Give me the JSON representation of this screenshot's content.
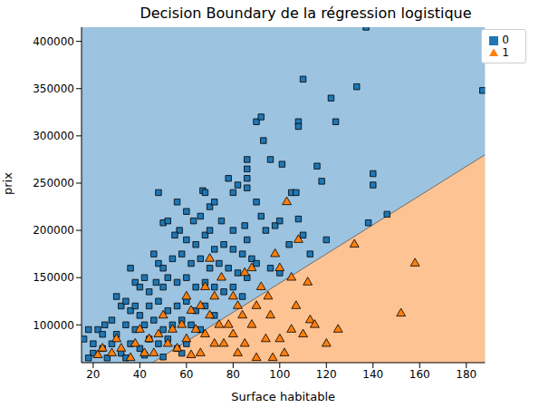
{
  "chart_data": {
    "type": "scatter",
    "title": "Decision Boundary de la régression logistique",
    "x_label": "Surface habitable",
    "y_label": "prix",
    "xlim": [
      15,
      188
    ],
    "ylim": [
      60000,
      415000
    ],
    "xticks": [
      20,
      40,
      60,
      80,
      100,
      120,
      140,
      160,
      180
    ],
    "yticks": [
      100000,
      150000,
      200000,
      250000,
      300000,
      350000,
      400000
    ],
    "grid": false,
    "legend": "upper right",
    "background_color": "#9cc3e0",
    "boundary": {
      "x": [
        15,
        188
      ],
      "y": [
        13000,
        280000
      ],
      "color": "#fec393"
    },
    "series": [
      {
        "name": "0",
        "color": "#1f77b4",
        "marker": "square",
        "x": [
          137,
          187,
          110,
          133,
          122,
          124,
          108,
          108,
          90,
          92,
          93,
          96,
          101,
          86,
          86,
          86,
          86,
          78,
          82,
          80,
          140,
          140,
          116,
          118,
          105,
          107,
          108,
          120,
          110,
          113,
          138,
          146,
          48,
          67,
          68,
          56,
          60,
          63,
          66,
          70,
          72,
          75,
          80,
          85,
          90,
          92,
          94,
          98,
          100,
          104,
          50,
          52,
          57,
          55,
          60,
          64,
          68,
          70,
          72,
          76,
          80,
          84,
          86,
          88,
          46,
          48,
          50,
          54,
          58,
          62,
          66,
          70,
          74,
          78,
          82,
          86,
          90,
          96,
          100,
          36,
          38,
          40,
          42,
          44,
          47,
          50,
          52,
          56,
          60,
          64,
          68,
          72,
          76,
          80,
          84,
          30,
          32,
          34,
          36,
          38,
          40,
          44,
          48,
          52,
          56,
          60,
          64,
          68,
          72,
          25,
          22,
          18,
          16,
          20,
          24,
          28,
          30,
          34,
          38,
          42,
          46,
          50,
          54,
          58,
          62,
          66,
          20,
          24,
          28,
          32,
          36,
          40,
          44,
          48,
          52,
          56,
          60,
          18,
          26,
          34,
          42,
          50,
          58
        ],
        "values": [
          415000,
          348000,
          360000,
          352000,
          340000,
          315000,
          315000,
          310000,
          315000,
          320000,
          295000,
          275000,
          270000,
          275000,
          265000,
          255000,
          245000,
          255000,
          248000,
          240000,
          260000,
          248000,
          268000,
          252000,
          240000,
          240000,
          212000,
          190000,
          195000,
          175000,
          208000,
          217000,
          240000,
          242000,
          240000,
          230000,
          220000,
          210000,
          215000,
          225000,
          230000,
          210000,
          200000,
          205000,
          230000,
          215000,
          200000,
          205000,
          210000,
          185000,
          208000,
          210000,
          200000,
          195000,
          190000,
          185000,
          195000,
          200000,
          180000,
          185000,
          180000,
          175000,
          190000,
          170000,
          175000,
          165000,
          160000,
          170000,
          175000,
          165000,
          170000,
          160000,
          165000,
          160000,
          155000,
          150000,
          165000,
          160000,
          155000,
          160000,
          145000,
          140000,
          150000,
          135000,
          145000,
          140000,
          150000,
          145000,
          150000,
          140000,
          145000,
          140000,
          135000,
          140000,
          130000,
          130000,
          120000,
          125000,
          115000,
          120000,
          110000,
          120000,
          125000,
          115000,
          120000,
          125000,
          115000,
          120000,
          110000,
          100000,
          95000,
          95000,
          85000,
          80000,
          90000,
          105000,
          90000,
          100000,
          95000,
          100000,
          105000,
          95000,
          100000,
          105000,
          100000,
          95000,
          70000,
          75000,
          80000,
          70000,
          80000,
          75000,
          85000,
          80000,
          85000,
          75000,
          80000,
          65000,
          65000,
          65000,
          68000,
          66000,
          70000
        ]
      },
      {
        "name": "1",
        "color": "#ff7f0e",
        "marker": "triangle",
        "x": [
          158,
          152,
          132,
          103,
          108,
          98,
          100,
          105,
          112,
          107,
          113,
          105,
          100,
          110,
          120,
          88,
          85,
          92,
          95,
          90,
          96,
          88,
          94,
          85,
          80,
          82,
          84,
          78,
          80,
          76,
          82,
          90,
          70,
          75,
          68,
          72,
          66,
          70,
          74,
          68,
          72,
          66,
          60,
          62,
          58,
          64,
          60,
          56,
          62,
          50,
          54,
          48,
          52,
          46,
          40,
          44,
          38,
          42,
          36,
          30,
          32,
          28,
          24,
          22,
          115,
          125,
          97,
          102
        ],
        "values": [
          165000,
          112000,
          185000,
          230000,
          190000,
          175000,
          160000,
          150000,
          145000,
          120000,
          105000,
          95000,
          85000,
          90000,
          80000,
          160000,
          155000,
          140000,
          130000,
          120000,
          110000,
          100000,
          85000,
          80000,
          130000,
          120000,
          110000,
          100000,
          90000,
          80000,
          70000,
          65000,
          170000,
          150000,
          140000,
          130000,
          120000,
          110000,
          100000,
          90000,
          80000,
          70000,
          130000,
          115000,
          100000,
          95000,
          85000,
          75000,
          68000,
          110000,
          95000,
          90000,
          80000,
          70000,
          95000,
          85000,
          80000,
          70000,
          65000,
          85000,
          75000,
          70000,
          75000,
          68000,
          100000,
          95000,
          65000,
          70000
        ]
      }
    ]
  }
}
